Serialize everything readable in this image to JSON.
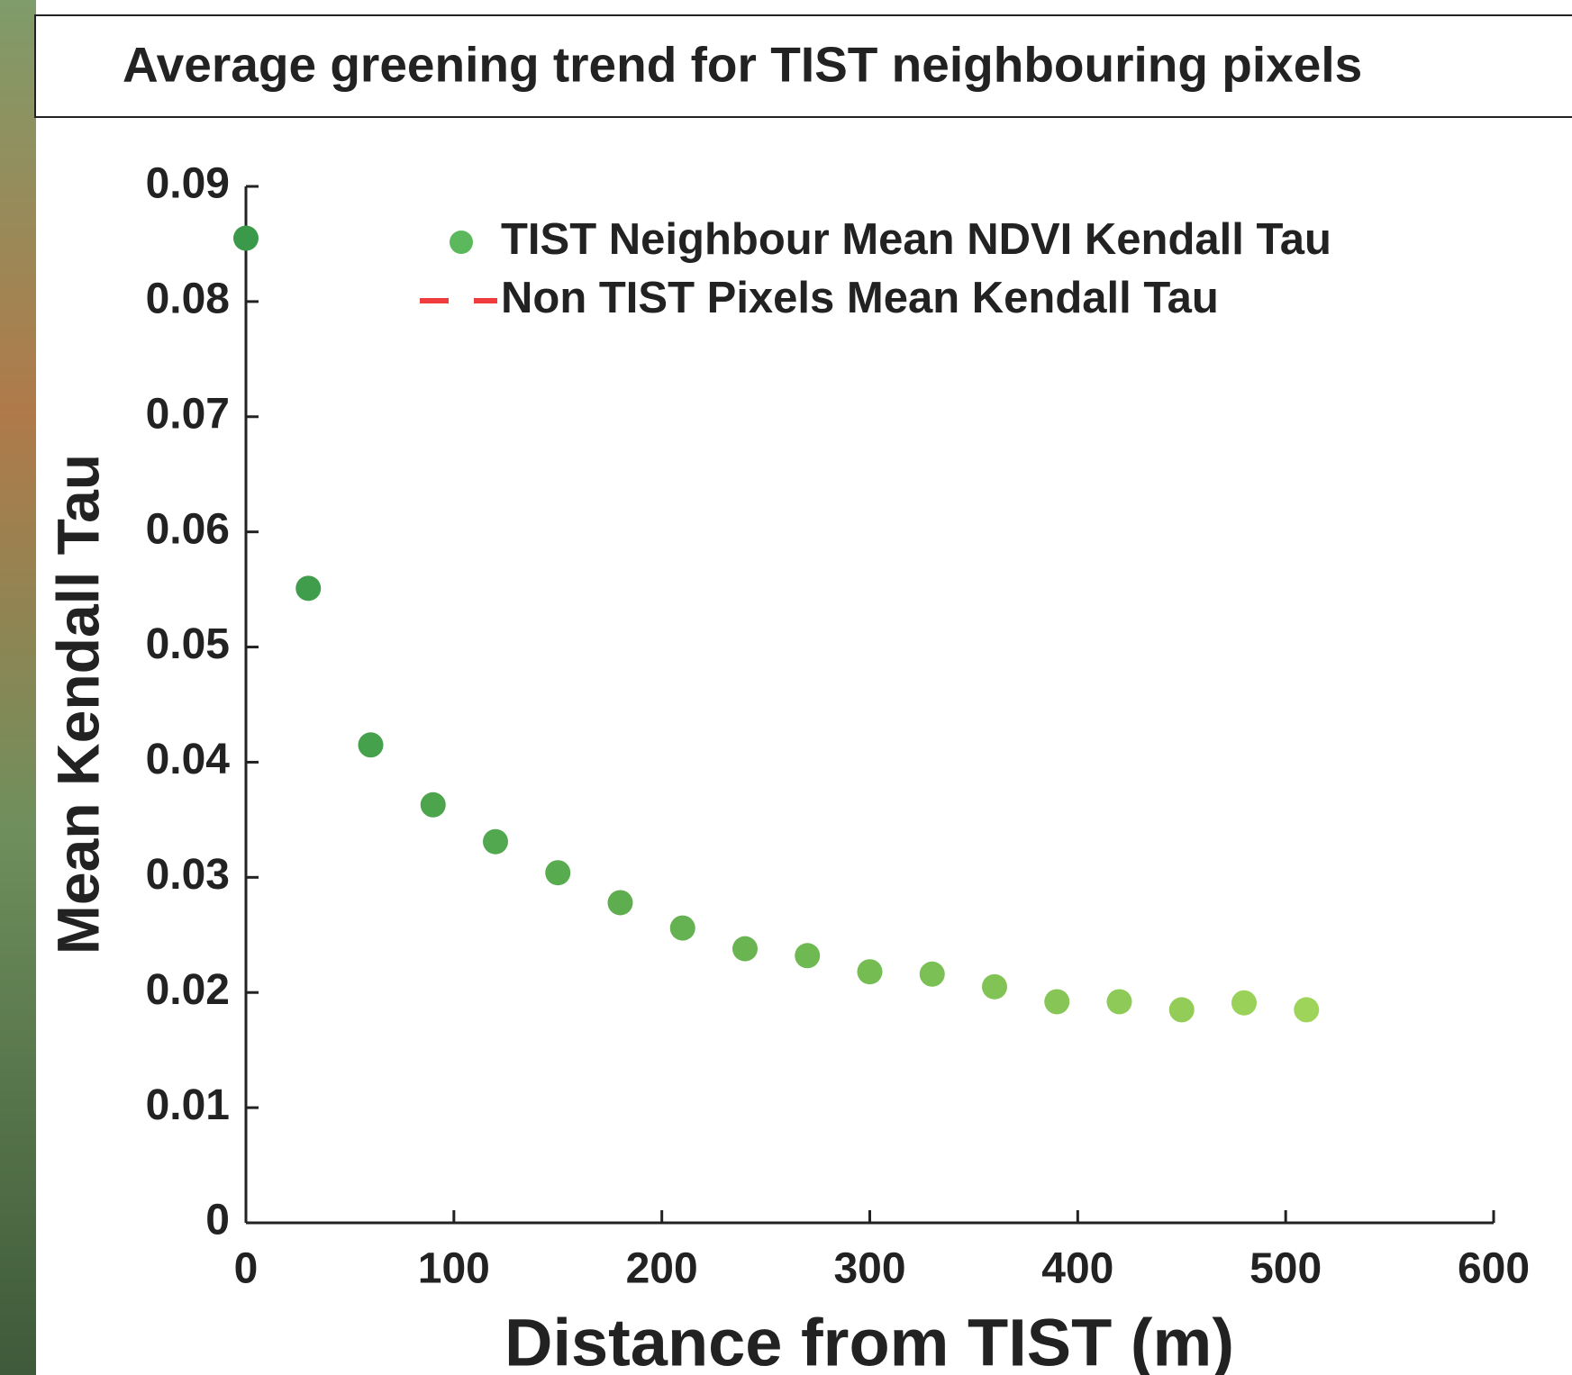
{
  "chart_data": {
    "type": "scatter",
    "title": "Average greening trend for TIST neighbouring pixels",
    "x_label": "Distance from TIST (m)",
    "y_label": "Mean Kendall Tau",
    "xlim": [
      0,
      600
    ],
    "xticks": [
      0,
      100,
      200,
      300,
      400,
      500,
      600
    ],
    "ylim": [
      0,
      0.09
    ],
    "yticks": [
      0,
      0.01,
      0.02,
      0.03,
      0.04,
      0.05,
      0.06,
      0.07,
      0.08,
      0.09
    ],
    "series": [
      {
        "name": "TIST Neighbour Mean NDVI Kendall Tau",
        "type": "scatter",
        "color": "#5cb85c",
        "x": [
          0,
          30,
          60,
          90,
          120,
          150,
          180,
          210,
          240,
          270,
          300,
          330,
          360,
          390,
          420,
          450,
          480,
          510
        ],
        "values": [
          0.0855,
          0.0551,
          0.0415,
          0.0363,
          0.0331,
          0.0304,
          0.0278,
          0.0256,
          0.0238,
          0.0232,
          0.0218,
          0.0216,
          0.0205,
          0.0192,
          0.0192,
          0.0185,
          0.0191,
          0.0185
        ],
        "colors": [
          "#3a9a4a",
          "#409d4b",
          "#46a14c",
          "#4ca44d",
          "#52a84e",
          "#58ab4f",
          "#5eae50",
          "#64b251",
          "#6ab552",
          "#6fb952",
          "#75bc53",
          "#7bc054",
          "#81c355",
          "#87c656",
          "#8dca57",
          "#93cd58",
          "#99d159",
          "#9fd45a"
        ]
      },
      {
        "name": "Non TIST Pixels Mean Kendall Tau",
        "type": "line",
        "color": "#f03c3c",
        "dashed": true,
        "x": [
          0,
          600
        ],
        "values": [
          0,
          0
        ]
      }
    ]
  }
}
